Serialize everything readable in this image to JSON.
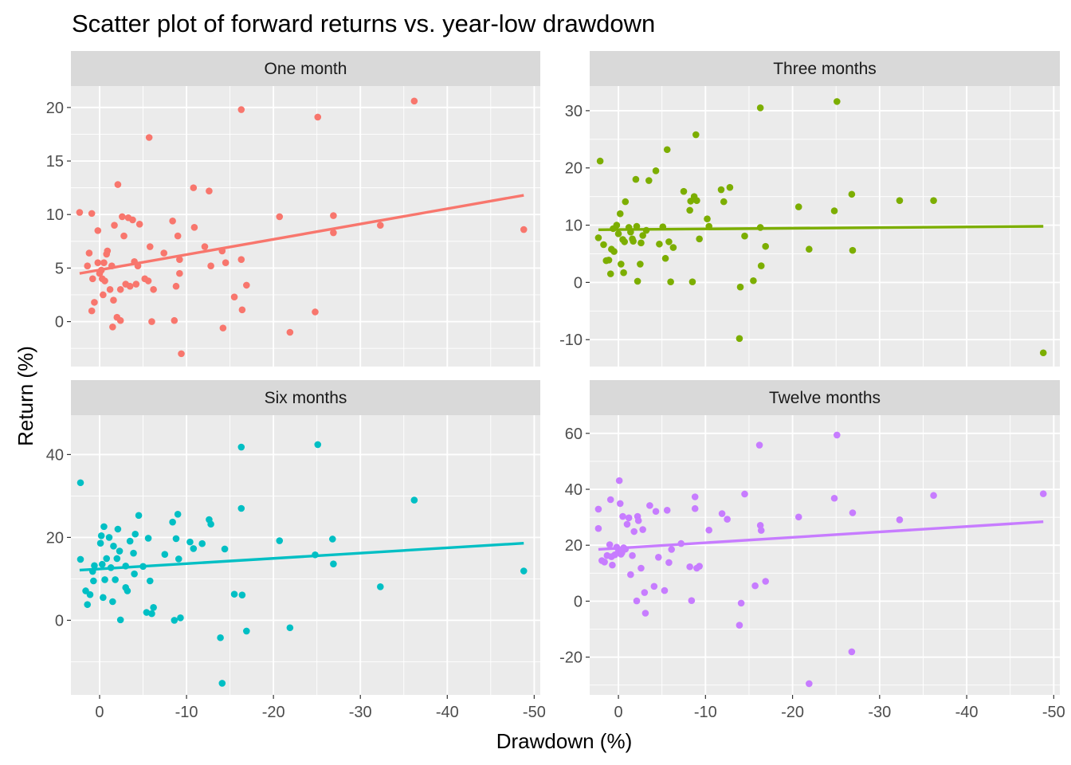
{
  "chart_data": {
    "type": "scatter",
    "title": "Scatter plot of forward returns vs. year-low drawdown",
    "xlabel": "Drawdown (%)",
    "ylabel": "Return (%)",
    "x_reversed": true,
    "xlim": [
      3.3,
      -50.7
    ],
    "x_ticks": [
      0,
      -10,
      -20,
      -30,
      -40,
      -50
    ],
    "x_tick_labels": [
      "0",
      "-10",
      "-20",
      "-30",
      "-40",
      "-50"
    ],
    "grid": true,
    "legend": "none",
    "panels": [
      {
        "name": "One month",
        "color": "#F8766D",
        "ylim": [
          -4.2,
          22.0
        ],
        "y_ticks": [
          0,
          5,
          10,
          15,
          20
        ],
        "y_tick_labels": [
          "0",
          "5",
          "10",
          "15",
          "20"
        ],
        "fit_line": [
          [
            2.3,
            4.5
          ],
          [
            -48.8,
            11.8
          ]
        ],
        "points": [
          [
            2.3,
            10.2
          ],
          [
            1.4,
            5.2
          ],
          [
            1.2,
            6.4
          ],
          [
            0.9,
            10.1
          ],
          [
            0.8,
            4.0
          ],
          [
            0.9,
            1.0
          ],
          [
            0.6,
            1.8
          ],
          [
            0.2,
            5.5
          ],
          [
            0.2,
            8.5
          ],
          [
            0.0,
            4.5
          ],
          [
            -0.2,
            4.8
          ],
          [
            -0.3,
            4.0
          ],
          [
            -0.4,
            2.5
          ],
          [
            -0.5,
            5.5
          ],
          [
            -0.6,
            3.8
          ],
          [
            -0.8,
            6.3
          ],
          [
            -0.9,
            6.6
          ],
          [
            -1.2,
            3.0
          ],
          [
            -1.4,
            5.2
          ],
          [
            -1.5,
            -0.5
          ],
          [
            -1.6,
            2.0
          ],
          [
            -1.7,
            9.0
          ],
          [
            -2.0,
            0.4
          ],
          [
            -2.1,
            12.8
          ],
          [
            -2.4,
            3.0
          ],
          [
            -2.4,
            0.1
          ],
          [
            -2.6,
            9.8
          ],
          [
            -2.8,
            8.0
          ],
          [
            -3.0,
            3.5
          ],
          [
            -3.3,
            9.7
          ],
          [
            -3.5,
            3.3
          ],
          [
            -3.8,
            9.5
          ],
          [
            -4.0,
            5.6
          ],
          [
            -4.2,
            3.5
          ],
          [
            -4.4,
            5.2
          ],
          [
            -4.6,
            9.1
          ],
          [
            -5.2,
            4.0
          ],
          [
            -5.6,
            3.8
          ],
          [
            -5.7,
            17.2
          ],
          [
            -5.8,
            7.0
          ],
          [
            -6.0,
            0.0
          ],
          [
            -6.2,
            3.0
          ],
          [
            -7.4,
            6.4
          ],
          [
            -8.4,
            9.4
          ],
          [
            -8.6,
            0.1
          ],
          [
            -8.8,
            3.3
          ],
          [
            -9.0,
            8.0
          ],
          [
            -9.2,
            5.8
          ],
          [
            -9.2,
            4.5
          ],
          [
            -9.4,
            -3.0
          ],
          [
            -10.8,
            12.5
          ],
          [
            -10.9,
            8.8
          ],
          [
            -12.1,
            7.0
          ],
          [
            -12.6,
            12.2
          ],
          [
            -12.8,
            5.2
          ],
          [
            -14.1,
            6.6
          ],
          [
            -14.2,
            -0.6
          ],
          [
            -14.5,
            5.5
          ],
          [
            -15.5,
            2.3
          ],
          [
            -16.3,
            19.8
          ],
          [
            -16.3,
            5.8
          ],
          [
            -16.4,
            1.1
          ],
          [
            -16.9,
            3.4
          ],
          [
            -20.7,
            9.8
          ],
          [
            -21.9,
            -1.0
          ],
          [
            -24.8,
            0.9
          ],
          [
            -25.1,
            19.1
          ],
          [
            -26.9,
            8.3
          ],
          [
            -26.9,
            9.9
          ],
          [
            -32.3,
            9.0
          ],
          [
            -36.2,
            20.6
          ],
          [
            -48.8,
            8.6
          ]
        ]
      },
      {
        "name": "Three months",
        "color": "#7CAE00",
        "ylim": [
          -14.7,
          34.3
        ],
        "y_ticks": [
          -10,
          0,
          10,
          20,
          30
        ],
        "y_tick_labels": [
          "-10",
          "0",
          "10",
          "20",
          "30"
        ],
        "fit_line": [
          [
            2.3,
            9.2
          ],
          [
            -48.8,
            9.8
          ]
        ],
        "points": [
          [
            2.3,
            7.8
          ],
          [
            2.1,
            21.2
          ],
          [
            1.7,
            6.6
          ],
          [
            1.4,
            3.8
          ],
          [
            1.1,
            3.9
          ],
          [
            0.9,
            1.5
          ],
          [
            0.8,
            5.8
          ],
          [
            0.6,
            9.4
          ],
          [
            0.5,
            5.4
          ],
          [
            0.2,
            10.0
          ],
          [
            0.0,
            8.5
          ],
          [
            -0.2,
            12.0
          ],
          [
            -0.3,
            3.2
          ],
          [
            -0.5,
            7.5
          ],
          [
            -0.6,
            1.7
          ],
          [
            -0.7,
            7.1
          ],
          [
            -0.8,
            14.1
          ],
          [
            -1.2,
            9.6
          ],
          [
            -1.4,
            8.8
          ],
          [
            -1.6,
            7.6
          ],
          [
            -1.7,
            7.2
          ],
          [
            -2.0,
            18.0
          ],
          [
            -2.1,
            9.8
          ],
          [
            -2.2,
            0.2
          ],
          [
            -2.5,
            3.2
          ],
          [
            -2.6,
            6.9
          ],
          [
            -2.8,
            8.2
          ],
          [
            -3.2,
            9.1
          ],
          [
            -3.5,
            17.8
          ],
          [
            -4.3,
            19.5
          ],
          [
            -4.7,
            6.7
          ],
          [
            -5.1,
            9.7
          ],
          [
            -5.4,
            4.2
          ],
          [
            -5.6,
            23.2
          ],
          [
            -5.8,
            7.1
          ],
          [
            -6.0,
            0.1
          ],
          [
            -6.3,
            6.1
          ],
          [
            -7.5,
            15.9
          ],
          [
            -8.2,
            12.6
          ],
          [
            -8.3,
            14.2
          ],
          [
            -8.5,
            0.1
          ],
          [
            -8.7,
            15.0
          ],
          [
            -8.9,
            25.8
          ],
          [
            -9.0,
            14.3
          ],
          [
            -9.3,
            7.6
          ],
          [
            -10.2,
            11.1
          ],
          [
            -10.4,
            9.8
          ],
          [
            -11.8,
            16.2
          ],
          [
            -12.1,
            14.1
          ],
          [
            -12.8,
            16.6
          ],
          [
            -13.9,
            -9.8
          ],
          [
            -14.0,
            -0.8
          ],
          [
            -14.5,
            8.1
          ],
          [
            -15.5,
            0.3
          ],
          [
            -16.3,
            30.5
          ],
          [
            -16.3,
            9.6
          ],
          [
            -16.4,
            2.9
          ],
          [
            -16.9,
            6.3
          ],
          [
            -20.7,
            13.2
          ],
          [
            -21.9,
            5.8
          ],
          [
            -24.8,
            12.5
          ],
          [
            -25.1,
            31.6
          ],
          [
            -26.8,
            15.4
          ],
          [
            -26.9,
            5.6
          ],
          [
            -32.3,
            14.3
          ],
          [
            -36.2,
            14.3
          ],
          [
            -48.8,
            -12.3
          ]
        ]
      },
      {
        "name": "Six months",
        "color": "#00BFC4",
        "ylim": [
          -18.0,
          49.5
        ],
        "y_ticks": [
          0,
          20,
          40
        ],
        "y_tick_labels": [
          "0",
          "20",
          "40"
        ],
        "fit_line": [
          [
            2.3,
            12.1
          ],
          [
            -48.8,
            18.6
          ]
        ],
        "points": [
          [
            2.2,
            33.2
          ],
          [
            2.2,
            14.7
          ],
          [
            1.6,
            7.1
          ],
          [
            1.4,
            3.8
          ],
          [
            1.1,
            6.2
          ],
          [
            0.8,
            11.8
          ],
          [
            0.7,
            9.5
          ],
          [
            0.6,
            13.2
          ],
          [
            -0.1,
            18.6
          ],
          [
            -0.2,
            20.4
          ],
          [
            -0.3,
            13.5
          ],
          [
            -0.4,
            5.5
          ],
          [
            -0.5,
            22.6
          ],
          [
            -0.6,
            9.8
          ],
          [
            -0.8,
            14.9
          ],
          [
            -1.1,
            20.0
          ],
          [
            -1.3,
            12.7
          ],
          [
            -1.5,
            4.5
          ],
          [
            -1.6,
            17.9
          ],
          [
            -1.8,
            9.8
          ],
          [
            -2.0,
            14.9
          ],
          [
            -2.1,
            22.0
          ],
          [
            -2.3,
            16.7
          ],
          [
            -2.4,
            0.1
          ],
          [
            -3.0,
            7.9
          ],
          [
            -3.0,
            13.1
          ],
          [
            -3.2,
            7.1
          ],
          [
            -3.5,
            19.1
          ],
          [
            -3.9,
            16.2
          ],
          [
            -4.0,
            11.2
          ],
          [
            -4.1,
            20.8
          ],
          [
            -4.5,
            25.3
          ],
          [
            -5.0,
            13.0
          ],
          [
            -5.4,
            1.9
          ],
          [
            -5.6,
            19.8
          ],
          [
            -5.8,
            9.5
          ],
          [
            -6.0,
            1.6
          ],
          [
            -6.2,
            3.1
          ],
          [
            -7.5,
            15.9
          ],
          [
            -8.4,
            23.7
          ],
          [
            -8.6,
            0.0
          ],
          [
            -8.8,
            19.7
          ],
          [
            -9.0,
            25.6
          ],
          [
            -9.1,
            14.8
          ],
          [
            -9.3,
            0.6
          ],
          [
            -10.4,
            18.9
          ],
          [
            -10.8,
            17.3
          ],
          [
            -11.8,
            18.5
          ],
          [
            -12.6,
            24.3
          ],
          [
            -12.8,
            23.2
          ],
          [
            -13.9,
            -4.2
          ],
          [
            -14.1,
            -15.2
          ],
          [
            -14.4,
            17.2
          ],
          [
            -15.5,
            6.3
          ],
          [
            -16.3,
            41.8
          ],
          [
            -16.3,
            27.0
          ],
          [
            -16.4,
            6.1
          ],
          [
            -16.9,
            -2.6
          ],
          [
            -20.7,
            19.2
          ],
          [
            -21.9,
            -1.8
          ],
          [
            -24.8,
            15.8
          ],
          [
            -25.1,
            42.4
          ],
          [
            -26.8,
            19.6
          ],
          [
            -26.9,
            13.6
          ],
          [
            -32.3,
            8.1
          ],
          [
            -36.2,
            29.0
          ],
          [
            -48.8,
            11.9
          ]
        ]
      },
      {
        "name": "Twelve months",
        "color": "#C77CFF",
        "ylim": [
          -33.5,
          66.5
        ],
        "y_ticks": [
          -20,
          0,
          20,
          40,
          60
        ],
        "y_tick_labels": [
          "-20",
          "0",
          "20",
          "40",
          "60"
        ],
        "fit_line": [
          [
            2.3,
            18.5
          ],
          [
            -48.8,
            28.4
          ]
        ],
        "points": [
          [
            2.3,
            32.9
          ],
          [
            2.3,
            26.0
          ],
          [
            1.9,
            14.5
          ],
          [
            1.6,
            14.0
          ],
          [
            1.3,
            16.3
          ],
          [
            1.0,
            20.2
          ],
          [
            0.9,
            36.3
          ],
          [
            0.8,
            15.9
          ],
          [
            0.7,
            12.9
          ],
          [
            0.4,
            16.6
          ],
          [
            0.2,
            19.3
          ],
          [
            0.0,
            17.6
          ],
          [
            -0.1,
            43.1
          ],
          [
            -0.2,
            34.9
          ],
          [
            -0.3,
            16.8
          ],
          [
            -0.4,
            17.3
          ],
          [
            -0.5,
            30.3
          ],
          [
            -0.6,
            19.1
          ],
          [
            -0.8,
            18.6
          ],
          [
            -1.0,
            27.5
          ],
          [
            -1.2,
            29.8
          ],
          [
            -1.4,
            9.5
          ],
          [
            -1.6,
            16.3
          ],
          [
            -1.8,
            24.9
          ],
          [
            -2.1,
            0.1
          ],
          [
            -2.2,
            30.3
          ],
          [
            -2.3,
            28.8
          ],
          [
            -2.6,
            11.8
          ],
          [
            -2.8,
            25.6
          ],
          [
            -3.0,
            3.1
          ],
          [
            -3.1,
            -4.3
          ],
          [
            -3.6,
            34.2
          ],
          [
            -4.1,
            5.3
          ],
          [
            -4.3,
            32.1
          ],
          [
            -4.6,
            15.7
          ],
          [
            -5.3,
            3.8
          ],
          [
            -5.6,
            32.5
          ],
          [
            -5.8,
            13.8
          ],
          [
            -6.1,
            18.5
          ],
          [
            -7.2,
            20.6
          ],
          [
            -8.2,
            12.3
          ],
          [
            -8.4,
            0.2
          ],
          [
            -8.8,
            33.1
          ],
          [
            -8.8,
            37.3
          ],
          [
            -9.0,
            11.8
          ],
          [
            -9.3,
            12.5
          ],
          [
            -10.4,
            25.4
          ],
          [
            -11.9,
            31.3
          ],
          [
            -12.5,
            29.3
          ],
          [
            -13.9,
            -8.6
          ],
          [
            -14.1,
            -0.7
          ],
          [
            -14.5,
            38.3
          ],
          [
            -15.7,
            5.5
          ],
          [
            -16.2,
            55.8
          ],
          [
            -16.3,
            27.1
          ],
          [
            -16.4,
            25.3
          ],
          [
            -16.9,
            7.1
          ],
          [
            -20.7,
            30.1
          ],
          [
            -21.9,
            -29.5
          ],
          [
            -24.8,
            36.8
          ],
          [
            -25.1,
            59.4
          ],
          [
            -26.8,
            -18.1
          ],
          [
            -26.9,
            31.6
          ],
          [
            -32.3,
            29.1
          ],
          [
            -36.2,
            37.8
          ],
          [
            -48.8,
            38.4
          ]
        ]
      }
    ]
  }
}
